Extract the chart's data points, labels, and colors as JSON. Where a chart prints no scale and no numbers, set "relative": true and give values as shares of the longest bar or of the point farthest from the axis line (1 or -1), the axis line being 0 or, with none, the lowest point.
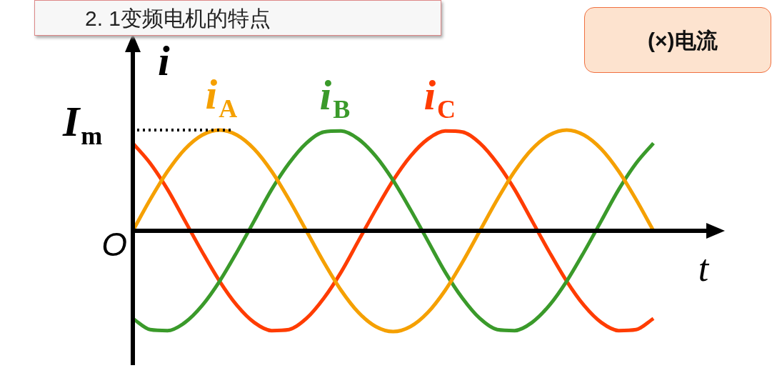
{
  "chart_data": {
    "type": "line",
    "title": "2. 1变频电机的特点",
    "xlabel": "t",
    "ylabel": "i",
    "relative": true,
    "legend": false,
    "grid": false,
    "marker": "none",
    "line_style": "solid",
    "annotations": [
      "O",
      "(×)电流"
    ],
    "ref_lines": [
      {
        "axis": "y",
        "value": 1,
        "label": "I$_{m}$",
        "line_style": "dotted"
      }
    ],
    "categories": [
      null,
      null,
      null,
      null,
      null,
      null,
      null,
      null,
      null,
      null,
      null,
      null,
      null,
      null,
      null,
      null,
      null,
      null,
      null,
      null,
      null,
      null,
      null,
      null,
      null,
      null,
      null,
      null,
      null,
      null,
      null
    ],
    "series": [
      {
        "name": "i$_{A}$",
        "color": "#f5a000",
        "values": [
          0,
          0.31,
          0.59,
          0.81,
          0.95,
          1,
          0.95,
          0.81,
          0.59,
          0.31,
          0,
          -0.31,
          -0.59,
          -0.81,
          -0.95,
          -1,
          -0.95,
          -0.81,
          -0.59,
          -0.31,
          0,
          0.31,
          0.59,
          0.81,
          0.95,
          1,
          0.95,
          0.81,
          0.59,
          0.31,
          0
        ]
      },
      {
        "name": "i$_{B}$",
        "color": "#3a9a2a",
        "values": [
          -0.87,
          -0.98,
          -0.99,
          -0.91,
          -0.74,
          -0.5,
          -0.21,
          0.1,
          0.41,
          0.67,
          0.87,
          0.98,
          0.99,
          0.91,
          0.74,
          0.5,
          0.21,
          -0.1,
          -0.41,
          -0.67,
          -0.87,
          -0.98,
          -0.99,
          -0.91,
          -0.74,
          -0.5,
          -0.21,
          0.1,
          0.41,
          0.67,
          0.87
        ]
      },
      {
        "name": "i$_{C}$",
        "color": "#ff3c00",
        "values": [
          0.87,
          0.67,
          0.41,
          0.1,
          -0.21,
          -0.5,
          -0.74,
          -0.91,
          -0.99,
          -0.98,
          -0.87,
          -0.67,
          -0.41,
          -0.1,
          0.21,
          0.5,
          0.74,
          0.91,
          0.99,
          0.98,
          0.87,
          0.67,
          0.41,
          0.1,
          -0.21,
          -0.5,
          -0.74,
          -0.91,
          -0.99,
          -0.98,
          -0.87
        ]
      }
    ]
  }
}
